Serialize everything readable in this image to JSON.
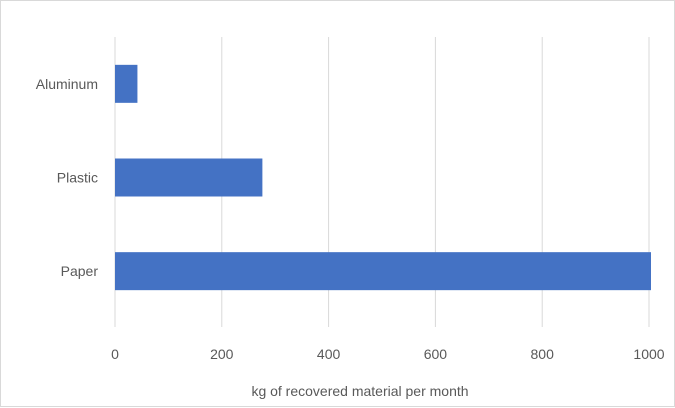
{
  "chart_data": {
    "type": "bar",
    "orientation": "horizontal",
    "categories": [
      "Aluminum",
      "Plastic",
      "Paper"
    ],
    "values": [
      42,
      276,
      1005
    ],
    "xlabel": "kg of recovered  material  per month",
    "xlim": [
      0,
      1000
    ],
    "xticks": [
      0,
      200,
      400,
      600,
      800,
      1000
    ],
    "grid": true,
    "legend": "none",
    "colors": {
      "bar": "#4472c4",
      "grid": "#d9d9d9",
      "text": "#595959"
    }
  }
}
